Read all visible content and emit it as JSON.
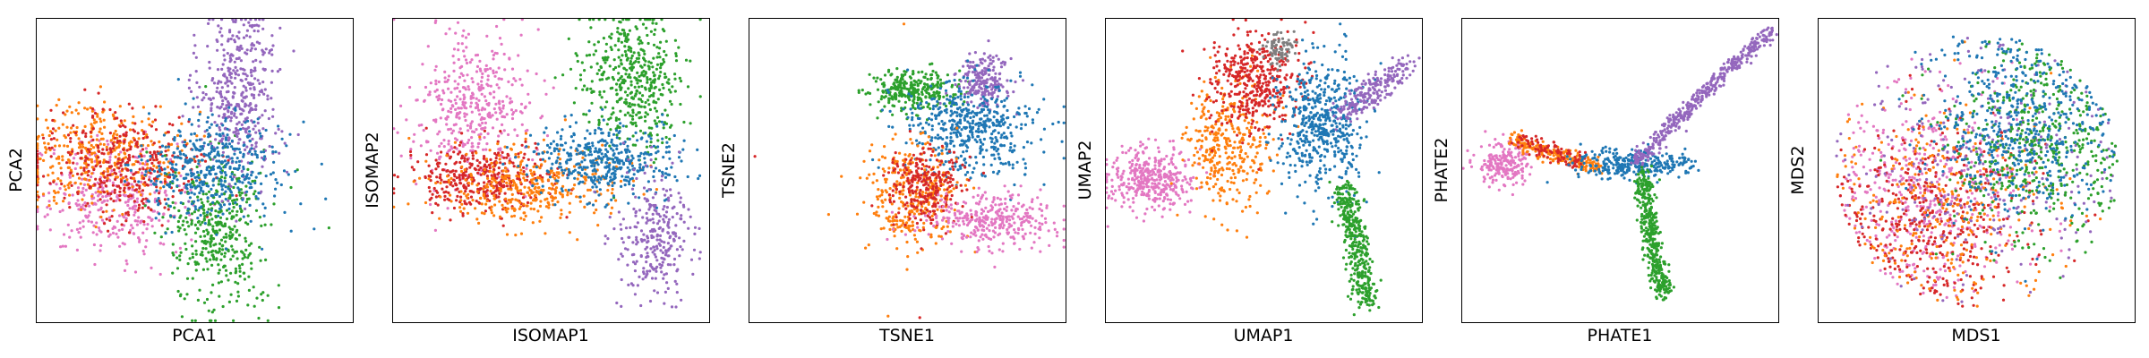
{
  "figure": {
    "panel_count": 6
  },
  "colors": {
    "blue": "#1f77b4",
    "orange": "#ff7f0e",
    "green": "#2ca02c",
    "red": "#d62728",
    "purple": "#9467bd",
    "pink": "#e377c2",
    "gray": "#7f7f7f"
  },
  "chart_data": [
    {
      "type": "scatter",
      "xlabel": "PCA1",
      "ylabel": "PCA2",
      "xlim": [
        -1,
        1
      ],
      "ylim": [
        -1,
        1
      ],
      "ticks": "none",
      "grid": false,
      "clusters": [
        {
          "color": "pink",
          "n": 360,
          "center": [
            -0.5,
            -0.18
          ],
          "spread": [
            0.24,
            0.19
          ]
        },
        {
          "color": "orange",
          "n": 380,
          "center": [
            -0.6,
            0.1
          ],
          "spread": [
            0.26,
            0.16
          ]
        },
        {
          "color": "red",
          "n": 340,
          "center": [
            -0.45,
            0.04
          ],
          "spread": [
            0.25,
            0.17
          ]
        },
        {
          "color": "green",
          "n": 420,
          "center": [
            0.14,
            -0.42
          ],
          "spread": [
            0.15,
            0.26
          ]
        },
        {
          "color": "purple",
          "n": 420,
          "center": [
            0.28,
            0.5
          ],
          "spread": [
            0.13,
            0.3
          ]
        },
        {
          "color": "blue",
          "n": 440,
          "center": [
            0.12,
            0.0
          ],
          "spread": [
            0.23,
            0.17
          ]
        }
      ],
      "outliers": [
        {
          "color": "green",
          "x": 0.85,
          "y": -0.38
        },
        {
          "color": "purple",
          "x": 0.38,
          "y": 0.95
        }
      ]
    },
    {
      "type": "scatter",
      "xlabel": "ISOMAP1",
      "ylabel": "ISOMAP2",
      "xlim": [
        -1,
        1
      ],
      "ylim": [
        -1,
        1
      ],
      "ticks": "none",
      "grid": false,
      "clusters": [
        {
          "color": "pink",
          "n": 420,
          "center": [
            -0.5,
            0.4
          ],
          "spread": [
            0.18,
            0.25
          ]
        },
        {
          "color": "red",
          "n": 360,
          "center": [
            -0.46,
            -0.05
          ],
          "spread": [
            0.22,
            0.1
          ]
        },
        {
          "color": "orange",
          "n": 380,
          "center": [
            -0.14,
            -0.1
          ],
          "spread": [
            0.28,
            0.12
          ]
        },
        {
          "color": "green",
          "n": 460,
          "center": [
            0.52,
            0.6
          ],
          "spread": [
            0.16,
            0.22
          ]
        },
        {
          "color": "blue",
          "n": 420,
          "center": [
            0.34,
            0.05
          ],
          "spread": [
            0.23,
            0.12
          ]
        },
        {
          "color": "purple",
          "n": 280,
          "center": [
            0.66,
            -0.45
          ],
          "spread": [
            0.12,
            0.22
          ]
        }
      ],
      "outliers": []
    },
    {
      "type": "scatter",
      "xlabel": "TSNE1",
      "ylabel": "TSNE2",
      "xlim": [
        -1,
        1
      ],
      "ylim": [
        -1,
        1
      ],
      "ticks": "none",
      "grid": false,
      "clusters": [
        {
          "color": "green",
          "n": 300,
          "center": [
            0.04,
            0.52
          ],
          "spread": [
            0.14,
            0.07
          ]
        },
        {
          "color": "purple",
          "n": 200,
          "center": [
            0.48,
            0.58
          ],
          "spread": [
            0.09,
            0.09
          ]
        },
        {
          "color": "blue",
          "n": 500,
          "center": [
            0.42,
            0.27
          ],
          "spread": [
            0.2,
            0.15
          ]
        },
        {
          "color": "orange",
          "n": 340,
          "center": [
            0.05,
            -0.16
          ],
          "spread": [
            0.15,
            0.19
          ]
        },
        {
          "color": "red",
          "n": 260,
          "center": [
            0.12,
            -0.1
          ],
          "spread": [
            0.12,
            0.12
          ]
        },
        {
          "color": "pink",
          "n": 330,
          "center": [
            0.55,
            -0.33
          ],
          "spread": [
            0.2,
            0.09
          ]
        }
      ],
      "outliers": [
        {
          "color": "orange",
          "x": -0.02,
          "y": 0.96
        },
        {
          "color": "red",
          "x": -0.96,
          "y": 0.09
        },
        {
          "color": "red",
          "x": 0.08,
          "y": -0.97
        },
        {
          "color": "orange",
          "x": -0.12,
          "y": -0.96
        }
      ]
    },
    {
      "type": "scatter",
      "xlabel": "UMAP1",
      "ylabel": "UMAP2",
      "xlim": [
        -1,
        1
      ],
      "ylim": [
        -1,
        1
      ],
      "ticks": "none",
      "grid": false,
      "clusters": [
        {
          "color": "pink",
          "n": 380,
          "center": [
            -0.7,
            -0.05
          ],
          "spread": [
            0.14,
            0.1
          ]
        },
        {
          "color": "orange",
          "n": 360,
          "center": [
            -0.22,
            0.18
          ],
          "spread": [
            0.14,
            0.22
          ]
        },
        {
          "color": "red",
          "n": 420,
          "center": [
            -0.06,
            0.58
          ],
          "spread": [
            0.14,
            0.16
          ]
        },
        {
          "color": "gray",
          "n": 80,
          "center": [
            0.11,
            0.8
          ],
          "spread": [
            0.05,
            0.05
          ]
        },
        {
          "color": "blue",
          "n": 520,
          "center": [
            0.38,
            0.3
          ],
          "spread": [
            0.14,
            0.23
          ]
        },
        {
          "color": "purple",
          "n": 220,
          "center": [
            0.66,
            0.52
          ],
          "spread": [
            0.05,
            0.04
          ],
          "path": [
            [
              0.5,
              0.37
            ],
            [
              0.68,
              0.53
            ],
            [
              0.9,
              0.68
            ]
          ]
        },
        {
          "color": "green",
          "n": 380,
          "center": [
            0.6,
            -0.45
          ],
          "spread": [
            0.04,
            0.03
          ],
          "path": [
            [
              0.5,
              -0.1
            ],
            [
              0.58,
              -0.45
            ],
            [
              0.66,
              -0.9
            ]
          ]
        }
      ],
      "outliers": []
    },
    {
      "type": "scatter",
      "xlabel": "PHATE1",
      "ylabel": "PHATE2",
      "xlim": [
        -1,
        1
      ],
      "ylim": [
        -1,
        1
      ],
      "ticks": "none",
      "grid": false,
      "clusters": [
        {
          "color": "pink",
          "n": 220,
          "center": [
            -0.72,
            0.04
          ],
          "spread": [
            0.09,
            0.07
          ]
        },
        {
          "color": "orange",
          "n": 220,
          "center": [
            -0.42,
            0.12
          ],
          "spread": [
            0.03,
            0.03
          ],
          "path": [
            [
              -0.68,
              0.2
            ],
            [
              -0.42,
              0.1
            ],
            [
              -0.14,
              0.02
            ]
          ]
        },
        {
          "color": "red",
          "n": 90,
          "center": [
            -0.42,
            0.12
          ],
          "spread": [
            0.03,
            0.03
          ],
          "path": [
            [
              -0.62,
              0.2
            ],
            [
              -0.42,
              0.12
            ],
            [
              -0.26,
              0.05
            ]
          ]
        },
        {
          "color": "blue",
          "n": 300,
          "center": [
            0.08,
            0.04
          ],
          "spread": [
            0.18,
            0.05
          ]
        },
        {
          "color": "purple",
          "n": 420,
          "center": [
            0.5,
            0.48
          ],
          "spread": [
            0.025,
            0.025
          ],
          "path": [
            [
              0.1,
              0.05
            ],
            [
              0.5,
              0.48
            ],
            [
              0.96,
              0.92
            ]
          ]
        },
        {
          "color": "green",
          "n": 400,
          "center": [
            0.2,
            -0.4
          ],
          "spread": [
            0.03,
            0.03
          ],
          "path": [
            [
              0.14,
              -0.02
            ],
            [
              0.2,
              -0.45
            ],
            [
              0.28,
              -0.84
            ]
          ]
        }
      ],
      "outliers": []
    },
    {
      "type": "scatter",
      "xlabel": "MDS1",
      "ylabel": "MDS2",
      "xlim": [
        -1,
        1
      ],
      "ylim": [
        -1,
        1
      ],
      "ticks": "none",
      "grid": false,
      "clusters": [
        {
          "color": "pink",
          "n": 480,
          "center": [
            -0.32,
            -0.16
          ],
          "spread": [
            0.3,
            0.32
          ],
          "disk": [
            0.0,
            0.0,
            0.9
          ]
        },
        {
          "color": "red",
          "n": 420,
          "center": [
            -0.24,
            -0.28
          ],
          "spread": [
            0.3,
            0.3
          ],
          "disk": [
            0.0,
            0.0,
            0.9
          ]
        },
        {
          "color": "orange",
          "n": 300,
          "center": [
            -0.18,
            -0.22
          ],
          "spread": [
            0.34,
            0.34
          ],
          "disk": [
            0.0,
            0.0,
            0.9
          ]
        },
        {
          "color": "purple",
          "n": 260,
          "center": [
            0.05,
            0.05
          ],
          "spread": [
            0.45,
            0.42
          ],
          "disk": [
            0.0,
            0.0,
            0.9
          ]
        },
        {
          "color": "green",
          "n": 480,
          "center": [
            0.36,
            0.18
          ],
          "spread": [
            0.3,
            0.32
          ],
          "disk": [
            0.0,
            0.0,
            0.9
          ]
        },
        {
          "color": "blue",
          "n": 520,
          "center": [
            0.28,
            0.3
          ],
          "spread": [
            0.3,
            0.3
          ],
          "disk": [
            0.0,
            0.0,
            0.9
          ]
        }
      ],
      "outliers": []
    }
  ]
}
